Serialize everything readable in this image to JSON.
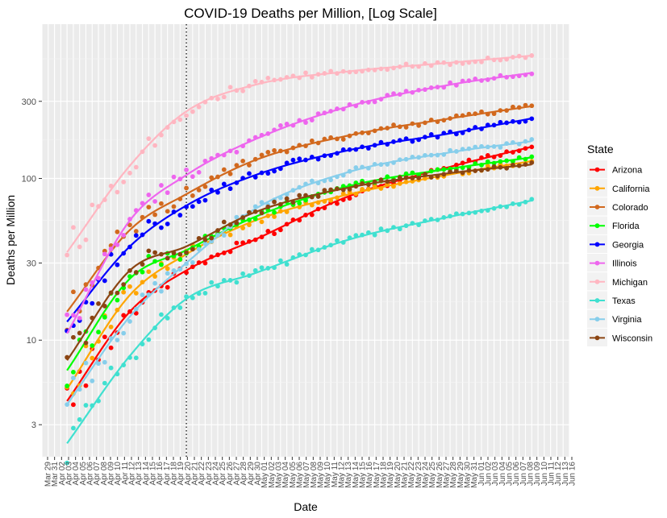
{
  "chart_data": {
    "type": "scatter",
    "title": "COVID-19 Deaths per Million, [Log Scale]",
    "xlabel": "Date",
    "ylabel": "Deaths per Million",
    "y_scale": "log",
    "ylim": [
      1.9,
      900
    ],
    "yticks": [
      3,
      10,
      30,
      100,
      300
    ],
    "x_date_range": [
      "2020-03-27",
      "2020-06-19"
    ],
    "xtick_labels": [
      "Mar 29",
      "Mar 31",
      "Apr 02",
      "Apr 03",
      "Apr 04",
      "Apr 05",
      "Apr 06",
      "Apr 07",
      "Apr 08",
      "Apr 09",
      "Apr 10",
      "Apr 11",
      "Apr 12",
      "Apr 13",
      "Apr 14",
      "Apr 15",
      "Apr 16",
      "Apr 17",
      "Apr 18",
      "Apr 19",
      "Apr 20",
      "Apr 21",
      "Apr 22",
      "Apr 23",
      "Apr 24",
      "Apr 25",
      "Apr 26",
      "Apr 27",
      "Apr 28",
      "Apr 29",
      "Apr 30",
      "May 01",
      "May 02",
      "May 03",
      "May 04",
      "May 05",
      "May 06",
      "May 07",
      "May 08",
      "May 09",
      "May 10",
      "May 11",
      "May 12",
      "May 13",
      "May 14",
      "May 15",
      "May 16",
      "May 17",
      "May 18",
      "May 19",
      "May 20",
      "May 21",
      "May 22",
      "May 23",
      "May 24",
      "May 25",
      "May 26",
      "May 27",
      "May 28",
      "May 29",
      "May 30",
      "May 31",
      "Jun 01",
      "Jun 02",
      "Jun 03",
      "Jun 04",
      "Jun 05",
      "Jun 06",
      "Jun 07",
      "Jun 08",
      "Jun 09",
      "Jun 10",
      "Jun 11",
      "Jun 12",
      "Jun 13",
      "Jun 16"
    ],
    "vertical_line_date": "2020-04-19",
    "grid": true,
    "legend_position": "right",
    "legend_title": "State",
    "series": [
      {
        "name": "Arizona",
        "color": "#ff0000",
        "points": [
          [
            "2020-03-31",
            4.2
          ],
          [
            "2020-04-10",
            15
          ],
          [
            "2020-04-19",
            27
          ],
          [
            "2020-04-30",
            42
          ],
          [
            "2020-05-15",
            78
          ],
          [
            "2020-05-31",
            118
          ],
          [
            "2020-06-13",
            157
          ]
        ]
      },
      {
        "name": "California",
        "color": "#ffa500",
        "points": [
          [
            "2020-03-31",
            5.0
          ],
          [
            "2020-04-10",
            19
          ],
          [
            "2020-04-19",
            34
          ],
          [
            "2020-04-30",
            55
          ],
          [
            "2020-05-15",
            80
          ],
          [
            "2020-05-31",
            106
          ],
          [
            "2020-06-13",
            128
          ]
        ]
      },
      {
        "name": "Colorado",
        "color": "#d2691e",
        "points": [
          [
            "2020-03-31",
            15
          ],
          [
            "2020-04-10",
            48
          ],
          [
            "2020-04-19",
            80
          ],
          [
            "2020-04-30",
            130
          ],
          [
            "2020-05-15",
            185
          ],
          [
            "2020-05-31",
            235
          ],
          [
            "2020-06-13",
            280
          ]
        ]
      },
      {
        "name": "Florida",
        "color": "#00ff00",
        "points": [
          [
            "2020-03-31",
            6.5
          ],
          [
            "2020-04-10",
            24
          ],
          [
            "2020-04-19",
            36
          ],
          [
            "2020-04-30",
            58
          ],
          [
            "2020-05-15",
            90
          ],
          [
            "2020-05-31",
            115
          ],
          [
            "2020-06-13",
            135
          ]
        ]
      },
      {
        "name": "Georgia",
        "color": "#0000ff",
        "points": [
          [
            "2020-03-31",
            13
          ],
          [
            "2020-04-10",
            38
          ],
          [
            "2020-04-19",
            68
          ],
          [
            "2020-04-30",
            105
          ],
          [
            "2020-05-15",
            150
          ],
          [
            "2020-05-31",
            190
          ],
          [
            "2020-06-13",
            235
          ]
        ]
      },
      {
        "name": "Illinois",
        "color": "#ee66ee",
        "points": [
          [
            "2020-03-31",
            11
          ],
          [
            "2020-04-10",
            55
          ],
          [
            "2020-04-19",
            105
          ],
          [
            "2020-04-30",
            175
          ],
          [
            "2020-05-15",
            280
          ],
          [
            "2020-05-31",
            380
          ],
          [
            "2020-06-13",
            450
          ]
        ]
      },
      {
        "name": "Michigan",
        "color": "#ffb6c1",
        "points": [
          [
            "2020-03-31",
            35
          ],
          [
            "2020-04-10",
            120
          ],
          [
            "2020-04-19",
            260
          ],
          [
            "2020-04-30",
            380
          ],
          [
            "2020-05-15",
            460
          ],
          [
            "2020-05-31",
            520
          ],
          [
            "2020-06-13",
            575
          ]
        ]
      },
      {
        "name": "Texas",
        "color": "#40e0d0",
        "points": [
          [
            "2020-03-31",
            2.3
          ],
          [
            "2020-04-10",
            8.0
          ],
          [
            "2020-04-19",
            18
          ],
          [
            "2020-04-30",
            26
          ],
          [
            "2020-05-15",
            42
          ],
          [
            "2020-05-31",
            58
          ],
          [
            "2020-06-13",
            73
          ]
        ]
      },
      {
        "name": "Virginia",
        "color": "#87ceeb",
        "points": [
          [
            "2020-03-31",
            4.0
          ],
          [
            "2020-04-10",
            14
          ],
          [
            "2020-04-19",
            30
          ],
          [
            "2020-04-30",
            65
          ],
          [
            "2020-05-15",
            110
          ],
          [
            "2020-05-31",
            145
          ],
          [
            "2020-06-13",
            170
          ]
        ]
      },
      {
        "name": "Wisconsin",
        "color": "#8b4513",
        "points": [
          [
            "2020-03-31",
            7.5
          ],
          [
            "2020-04-10",
            27
          ],
          [
            "2020-04-19",
            38
          ],
          [
            "2020-04-30",
            62
          ],
          [
            "2020-05-15",
            88
          ],
          [
            "2020-05-31",
            108
          ],
          [
            "2020-06-13",
            122
          ]
        ]
      }
    ]
  }
}
